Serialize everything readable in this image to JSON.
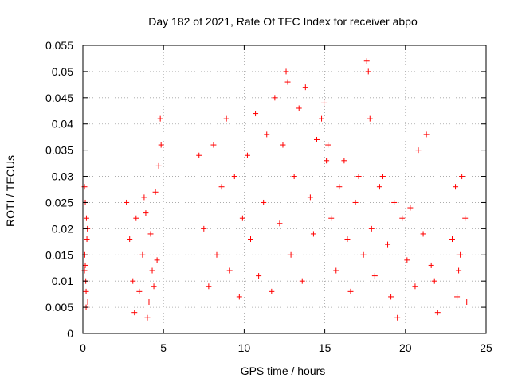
{
  "chart_data": {
    "type": "scatter",
    "title": "Day 182 of 2021, Rate Of TEC Index for receiver abpo",
    "xlabel": "GPS time / hours",
    "ylabel": "ROTI / TECUs",
    "xlim": [
      0,
      25
    ],
    "ylim": [
      0,
      0.055
    ],
    "x_ticks": [
      "0",
      "5",
      "10",
      "15",
      "20",
      "25"
    ],
    "x_tick_values": [
      0,
      5,
      10,
      15,
      20,
      25
    ],
    "y_ticks": [
      "0",
      "0.005",
      "0.01",
      "0.015",
      "0.02",
      "0.025",
      "0.03",
      "0.035",
      "0.04",
      "0.045",
      "0.05",
      "0.055"
    ],
    "y_tick_values": [
      0,
      0.005,
      0.01,
      0.015,
      0.02,
      0.025,
      0.03,
      0.035,
      0.04,
      0.045,
      0.05,
      0.055
    ],
    "grid": true,
    "marker": "+",
    "marker_color": "#ff0000",
    "series": [
      {
        "x": [
          0.1,
          0.1,
          0.15,
          0.2,
          0.25,
          0.3,
          0.12,
          0.22,
          0.18,
          0.28,
          0.2,
          0.15,
          2.7,
          2.9,
          3.1,
          3.3,
          3.5,
          3.7,
          3.9,
          4.1,
          4.3,
          4.5,
          4.7,
          4.8,
          4.85,
          4.0,
          4.2,
          4.6,
          3.2,
          3.8,
          4.4,
          7.2,
          7.5,
          7.8,
          8.1,
          8.3,
          8.6,
          8.9,
          9.1,
          9.4,
          9.7,
          9.9,
          10.2,
          10.4,
          10.7,
          10.9,
          11.2,
          11.4,
          11.7,
          11.9,
          12.2,
          12.4,
          12.6,
          12.7,
          12.9,
          13.1,
          13.4,
          13.6,
          13.8,
          14.1,
          14.3,
          14.5,
          14.8,
          14.95,
          15.1,
          15.2,
          15.4,
          15.7,
          15.9,
          16.2,
          16.4,
          16.6,
          16.9,
          17.1,
          17.4,
          17.6,
          17.7,
          17.8,
          17.9,
          18.1,
          18.4,
          18.6,
          18.9,
          19.1,
          19.3,
          19.5,
          19.8,
          20.1,
          20.3,
          20.6,
          20.8,
          21.1,
          21.3,
          21.6,
          21.8,
          22.0,
          22.9,
          23.1,
          23.3,
          23.5,
          23.7,
          23.8,
          23.2,
          23.4
        ],
        "y": [
          0.028,
          0.012,
          0.025,
          0.008,
          0.018,
          0.006,
          0.015,
          0.022,
          0.01,
          0.02,
          0.005,
          0.013,
          0.025,
          0.018,
          0.01,
          0.022,
          0.008,
          0.015,
          0.023,
          0.006,
          0.012,
          0.027,
          0.032,
          0.041,
          0.036,
          0.003,
          0.019,
          0.014,
          0.004,
          0.026,
          0.009,
          0.034,
          0.02,
          0.009,
          0.036,
          0.015,
          0.028,
          0.041,
          0.012,
          0.03,
          0.007,
          0.022,
          0.034,
          0.018,
          0.042,
          0.011,
          0.025,
          0.038,
          0.008,
          0.045,
          0.021,
          0.036,
          0.05,
          0.048,
          0.015,
          0.03,
          0.043,
          0.01,
          0.047,
          0.026,
          0.019,
          0.037,
          0.041,
          0.044,
          0.033,
          0.036,
          0.022,
          0.012,
          0.028,
          0.033,
          0.018,
          0.008,
          0.025,
          0.03,
          0.015,
          0.052,
          0.05,
          0.041,
          0.02,
          0.011,
          0.028,
          0.03,
          0.017,
          0.007,
          0.025,
          0.003,
          0.022,
          0.014,
          0.024,
          0.009,
          0.035,
          0.019,
          0.038,
          0.013,
          0.01,
          0.004,
          0.018,
          0.028,
          0.012,
          0.03,
          0.022,
          0.006,
          0.007,
          0.015
        ]
      }
    ]
  }
}
